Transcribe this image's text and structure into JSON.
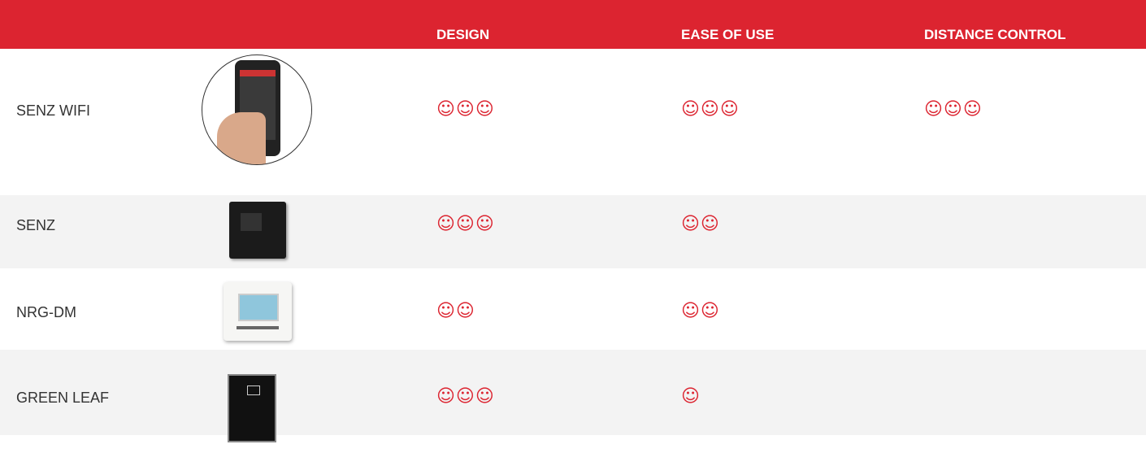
{
  "table": {
    "header": [
      "DESIGN",
      "EASE OF USE",
      "DISTANCE CONTROL"
    ],
    "rows": [
      {
        "name": "SENZ WIFI",
        "ratings": [
          "☺☺☺",
          "☺☺☺",
          "☺☺☺"
        ]
      },
      {
        "name": "SENZ",
        "ratings": [
          "☺☺☺",
          "☺☺"
        ]
      },
      {
        "name": "NRG-DM",
        "ratings": [
          "☺☺",
          "☺☺"
        ]
      },
      {
        "name": "GREEN LEAF",
        "ratings": [
          "☺☺☺",
          "☺"
        ]
      }
    ]
  }
}
